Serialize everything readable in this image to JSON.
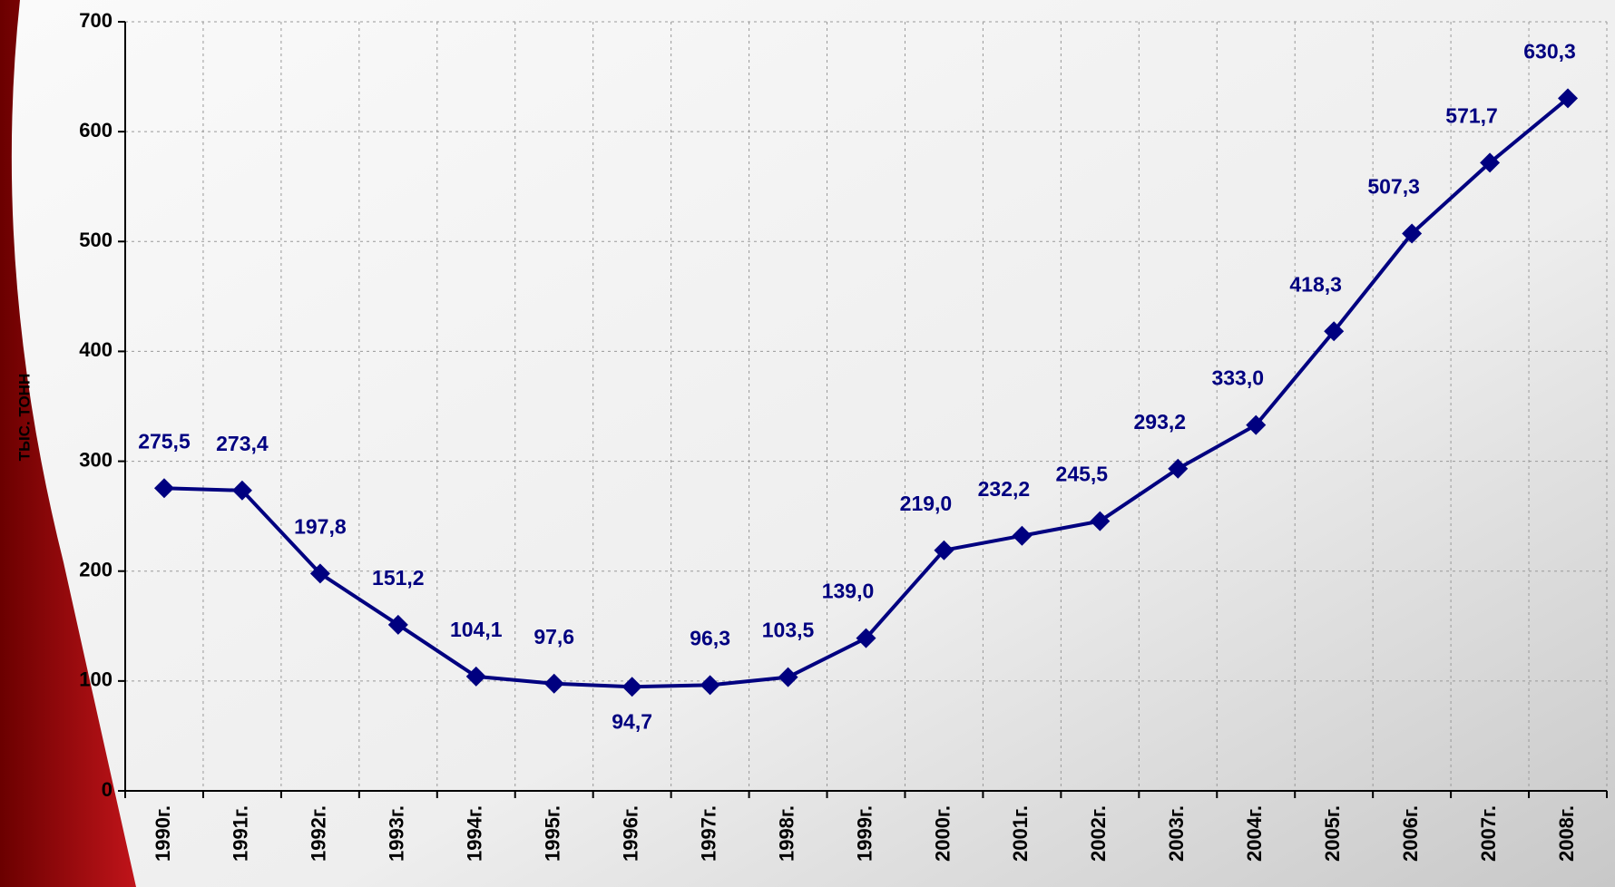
{
  "chart_data": {
    "type": "line",
    "y_label": "ТЫС. ТОНН",
    "categories": [
      "1990г.",
      "1991г.",
      "1992г.",
      "1993г.",
      "1994г.",
      "1995г.",
      "1996г.",
      "1997г.",
      "1998г.",
      "1999г.",
      "2000г.",
      "2001г.",
      "2002г.",
      "2003г.",
      "2004г.",
      "2005г.",
      "2006г.",
      "2007г.",
      "2008г."
    ],
    "values": [
      275.5,
      273.4,
      197.8,
      151.2,
      104.1,
      97.6,
      94.7,
      96.3,
      103.5,
      139.0,
      219.0,
      232.2,
      245.5,
      293.2,
      333.0,
      418.3,
      507.3,
      571.7,
      630.3
    ],
    "value_labels": [
      "275,5",
      "273,4",
      "197,8",
      "151,2",
      "104,1",
      "97,6",
      "94,7",
      "96,3",
      "103,5",
      "139,0",
      "219,0",
      "232,2",
      "245,5",
      "293,2",
      "333,0",
      "418,3",
      "507,3",
      "571,7",
      "630,3"
    ],
    "color": "#000080",
    "ylim": [
      0,
      700
    ],
    "yticks": [
      0,
      100,
      200,
      300,
      400,
      500,
      600,
      700
    ],
    "grid": true
  }
}
